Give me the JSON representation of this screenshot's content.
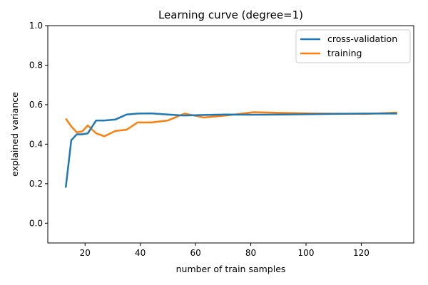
{
  "chart_data": {
    "type": "line",
    "title": "Learning curve (degree=1)",
    "xlabel": "number of train samples",
    "ylabel": "explained variance",
    "xlim": [
      6.5,
      139.0
    ],
    "ylim": [
      -0.1,
      1.0
    ],
    "x_ticks": [
      20,
      40,
      60,
      80,
      100,
      120
    ],
    "y_ticks": [
      0.0,
      0.2,
      0.4,
      0.6,
      0.8,
      1.0
    ],
    "x_tick_labels": [
      "20",
      "40",
      "60",
      "80",
      "100",
      "120"
    ],
    "y_tick_labels": [
      "0.0",
      "0.2",
      "0.4",
      "0.6",
      "0.8",
      "1.0"
    ],
    "grid": false,
    "legend_position": "top-right",
    "series": [
      {
        "name": "cross-validation",
        "color": "#1f77b4",
        "x": [
          13,
          15,
          17,
          19,
          21,
          24,
          27,
          31,
          35,
          39,
          44,
          50,
          56,
          63,
          71,
          81,
          92,
          106,
          121,
          133
        ],
        "y": [
          0.18,
          0.42,
          0.45,
          0.45,
          0.455,
          0.52,
          0.52,
          0.525,
          0.55,
          0.555,
          0.556,
          0.55,
          0.545,
          0.548,
          0.55,
          0.549,
          0.55,
          0.553,
          0.555,
          0.555
        ]
      },
      {
        "name": "training",
        "color": "#ff7f0e",
        "x": [
          13,
          15,
          17,
          19,
          21,
          24,
          27,
          31,
          35,
          39,
          44,
          50,
          56,
          63,
          71,
          81,
          92,
          106,
          121,
          133
        ],
        "y": [
          0.53,
          0.49,
          0.46,
          0.465,
          0.495,
          0.455,
          0.44,
          0.467,
          0.473,
          0.51,
          0.51,
          0.52,
          0.555,
          0.535,
          0.545,
          0.562,
          0.558,
          0.555,
          0.553,
          0.56
        ]
      }
    ]
  }
}
